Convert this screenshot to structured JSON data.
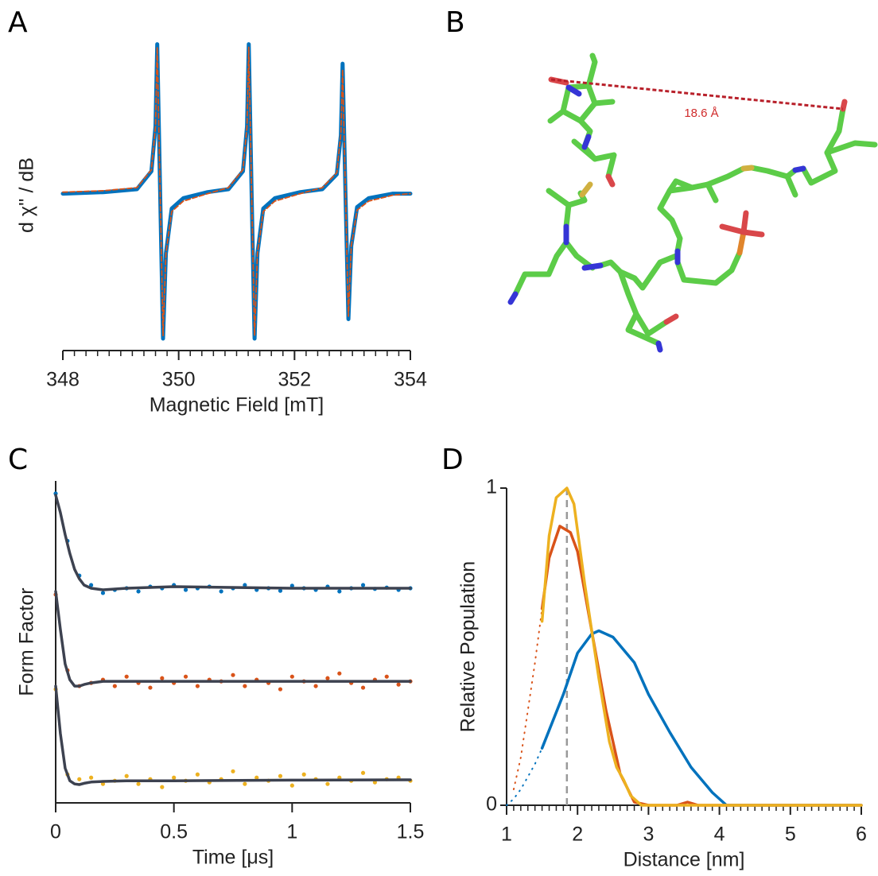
{
  "chart_data": [
    {
      "type": "line",
      "panel": "A",
      "xlabel": "Magnetic Field [mT]",
      "ylabel": "d χ'' / dB",
      "x": [
        348,
        348.7,
        349.28,
        349.53,
        349.6,
        349.63,
        349.68,
        349.73,
        349.78,
        349.88,
        350.08,
        350.5,
        350.86,
        351.11,
        351.18,
        351.21,
        351.26,
        351.31,
        351.36,
        351.46,
        351.66,
        352.1,
        352.48,
        352.73,
        352.8,
        352.83,
        352.88,
        352.93,
        352.98,
        353.08,
        353.28,
        353.7,
        354
      ],
      "xlim": [
        348,
        354
      ],
      "xticks": [
        348,
        350,
        352,
        354
      ],
      "xminorticks": [
        348,
        348.2,
        348.4,
        348.6,
        348.8,
        349,
        349.2,
        349.4,
        349.6,
        349.8,
        350,
        350.2,
        350.4,
        350.6,
        350.8,
        351,
        351.2,
        351.4,
        351.6,
        351.8,
        352,
        352.2,
        352.4,
        352.6,
        352.8,
        353,
        353.2,
        353.4,
        353.6,
        353.8,
        354
      ],
      "ylim": [
        -1.05,
        1.03
      ],
      "series": [
        {
          "color": "#0072bd",
          "style": "solid",
          "values": [
            0,
            0.01,
            0.03,
            0.15,
            0.45,
            1.0,
            0,
            -0.97,
            -0.4,
            -0.1,
            -0.03,
            0.01,
            0.03,
            0.15,
            0.45,
            1.0,
            0,
            -0.97,
            -0.4,
            -0.1,
            -0.03,
            0.01,
            0.03,
            0.13,
            0.39,
            0.87,
            0,
            -0.84,
            -0.35,
            -0.09,
            -0.03,
            0,
            0
          ]
        },
        {
          "color": "#d95319",
          "style": "dashed",
          "values": [
            0.01,
            0.02,
            0.04,
            0.16,
            0.45,
            0.98,
            0,
            -0.95,
            -0.4,
            -0.12,
            -0.05,
            0,
            0.04,
            0.16,
            0.45,
            0.98,
            0,
            -0.95,
            -0.4,
            -0.12,
            -0.05,
            0,
            0.04,
            0.14,
            0.4,
            0.83,
            0,
            -0.82,
            -0.35,
            -0.11,
            -0.05,
            -0.01,
            0
          ]
        }
      ]
    },
    {
      "type": "line",
      "panel": "C",
      "xlabel": "Time [μs]",
      "ylabel": "Form Factor",
      "xlim": [
        0,
        1.5
      ],
      "xticks": [
        0,
        0.5,
        1,
        1.5
      ],
      "ylim": [
        0,
        1.02
      ],
      "series": [
        {
          "color": "#0072bd",
          "style": "dots",
          "x": [
            0,
            0.05,
            0.1,
            0.15,
            0.2,
            0.25,
            0.3,
            0.35,
            0.4,
            0.45,
            0.5,
            0.55,
            0.6,
            0.65,
            0.7,
            0.75,
            0.8,
            0.85,
            0.9,
            0.95,
            1,
            1.05,
            1.1,
            1.15,
            1.2,
            1.25,
            1.3,
            1.35,
            1.4,
            1.45,
            1.5
          ],
          "values": [
            0.98,
            0.83,
            0.72,
            0.69,
            0.665,
            0.675,
            0.68,
            0.67,
            0.685,
            0.68,
            0.69,
            0.675,
            0.68,
            0.685,
            0.67,
            0.68,
            0.69,
            0.675,
            0.68,
            0.672,
            0.688,
            0.68,
            0.675,
            0.685,
            0.67,
            0.68,
            0.69,
            0.678,
            0.682,
            0.675,
            0.68
          ]
        },
        {
          "color": "#d95319",
          "style": "dots",
          "x": [
            0,
            0.05,
            0.1,
            0.15,
            0.2,
            0.25,
            0.3,
            0.35,
            0.4,
            0.45,
            0.5,
            0.55,
            0.6,
            0.65,
            0.7,
            0.75,
            0.8,
            0.85,
            0.9,
            0.95,
            1,
            1.05,
            1.1,
            1.15,
            1.2,
            1.25,
            1.3,
            1.35,
            1.4,
            1.45,
            1.5
          ],
          "values": [
            0.66,
            0.42,
            0.37,
            0.38,
            0.39,
            0.37,
            0.4,
            0.38,
            0.365,
            0.395,
            0.38,
            0.4,
            0.37,
            0.39,
            0.385,
            0.405,
            0.37,
            0.39,
            0.38,
            0.36,
            0.4,
            0.385,
            0.37,
            0.395,
            0.41,
            0.38,
            0.365,
            0.39,
            0.4,
            0.375,
            0.385
          ]
        },
        {
          "color": "#edb120",
          "style": "dots",
          "x": [
            0,
            0.05,
            0.1,
            0.15,
            0.2,
            0.25,
            0.3,
            0.35,
            0.4,
            0.45,
            0.5,
            0.55,
            0.6,
            0.65,
            0.7,
            0.75,
            0.8,
            0.85,
            0.9,
            0.95,
            1,
            1.05,
            1.1,
            1.15,
            1.2,
            1.25,
            1.3,
            1.35,
            1.4,
            1.45,
            1.5
          ],
          "values": [
            0.36,
            0.09,
            0.075,
            0.08,
            0.06,
            0.07,
            0.085,
            0.06,
            0.075,
            0.05,
            0.08,
            0.07,
            0.09,
            0.065,
            0.075,
            0.1,
            0.06,
            0.08,
            0.07,
            0.085,
            0.055,
            0.09,
            0.075,
            0.06,
            0.08,
            0.07,
            0.095,
            0.065,
            0.075,
            0.08,
            0.07
          ]
        },
        {
          "color": "#3d4250",
          "style": "solid",
          "x": [
            0,
            0.02,
            0.04,
            0.06,
            0.08,
            0.1,
            0.12,
            0.15,
            0.2,
            0.3,
            0.5,
            1,
            1.5
          ],
          "values": [
            0.975,
            0.92,
            0.85,
            0.79,
            0.74,
            0.71,
            0.69,
            0.68,
            0.675,
            0.68,
            0.685,
            0.68,
            0.68
          ]
        },
        {
          "color": "#3d4250",
          "style": "solid",
          "x": [
            0,
            0.02,
            0.04,
            0.06,
            0.08,
            0.1,
            0.12,
            0.15,
            0.2,
            0.3,
            0.5,
            1,
            1.5
          ],
          "values": [
            0.67,
            0.55,
            0.44,
            0.39,
            0.37,
            0.37,
            0.375,
            0.38,
            0.385,
            0.385,
            0.385,
            0.385,
            0.385
          ]
        },
        {
          "color": "#3d4250",
          "style": "solid",
          "x": [
            0,
            0.02,
            0.04,
            0.06,
            0.08,
            0.1,
            0.12,
            0.15,
            0.2,
            0.3,
            0.5,
            1,
            1.5
          ],
          "values": [
            0.37,
            0.22,
            0.11,
            0.07,
            0.06,
            0.058,
            0.062,
            0.066,
            0.068,
            0.07,
            0.07,
            0.072,
            0.073
          ]
        }
      ]
    },
    {
      "type": "line",
      "panel": "D",
      "xlabel": "Distance [nm]",
      "ylabel": "Relative Population",
      "xlim": [
        1,
        6
      ],
      "xticks": [
        1,
        2,
        3,
        4,
        5,
        6
      ],
      "xminorticks": [
        1,
        1.1,
        1.2,
        1.3,
        1.4,
        1.5,
        1.6,
        1.7,
        1.8,
        1.9,
        2,
        2.1,
        2.2,
        2.3,
        2.4,
        2.5,
        2.6,
        2.7,
        2.8,
        2.9,
        3,
        3.1,
        3.2,
        3.3,
        3.4,
        3.5,
        3.6,
        3.7,
        3.8,
        3.9,
        4,
        4.1,
        4.2,
        4.3,
        4.4,
        4.5,
        4.6,
        4.7,
        4.8,
        4.9,
        5,
        5.1,
        5.2,
        5.3,
        5.4,
        5.5,
        5.6,
        5.7,
        5.8,
        5.9,
        6
      ],
      "ylim": [
        0,
        1
      ],
      "yticks": [
        0,
        1
      ],
      "reference_line": 1.85,
      "series": [
        {
          "color": "#0072bd",
          "style": "dotted",
          "x": [
            1,
            1.1,
            1.2,
            1.3,
            1.4,
            1.5
          ],
          "values": [
            0,
            0.02,
            0.05,
            0.09,
            0.13,
            0.18
          ]
        },
        {
          "color": "#0072bd",
          "style": "solid",
          "x": [
            1.5,
            1.8,
            2.0,
            2.2,
            2.3,
            2.5,
            2.8,
            3.0,
            3.3,
            3.6,
            3.9,
            4.1,
            6
          ],
          "values": [
            0.18,
            0.35,
            0.48,
            0.54,
            0.55,
            0.53,
            0.45,
            0.35,
            0.23,
            0.12,
            0.04,
            0,
            0
          ]
        },
        {
          "color": "#d95319",
          "style": "dotted",
          "x": [
            1.1,
            1.2,
            1.3,
            1.4,
            1.5
          ],
          "values": [
            0.05,
            0.15,
            0.3,
            0.45,
            0.62
          ]
        },
        {
          "color": "#d95319",
          "style": "solid",
          "x": [
            1.5,
            1.6,
            1.75,
            1.9,
            2.0,
            2.2,
            2.4,
            2.6,
            2.8,
            3.0,
            3.4,
            3.55,
            3.7,
            6
          ],
          "values": [
            0.62,
            0.78,
            0.88,
            0.86,
            0.8,
            0.55,
            0.3,
            0.1,
            0.01,
            0,
            0,
            0.01,
            0,
            0
          ]
        },
        {
          "color": "#edb120",
          "style": "solid",
          "x": [
            1.5,
            1.6,
            1.7,
            1.85,
            1.95,
            2.1,
            2.3,
            2.45,
            2.55,
            2.65,
            2.75,
            2.9,
            6
          ],
          "values": [
            0.58,
            0.85,
            0.97,
            1.0,
            0.95,
            0.7,
            0.4,
            0.2,
            0.12,
            0.08,
            0.03,
            0,
            0
          ]
        }
      ]
    }
  ],
  "structure": {
    "panel": "B",
    "annotation": "18.6 Å"
  }
}
